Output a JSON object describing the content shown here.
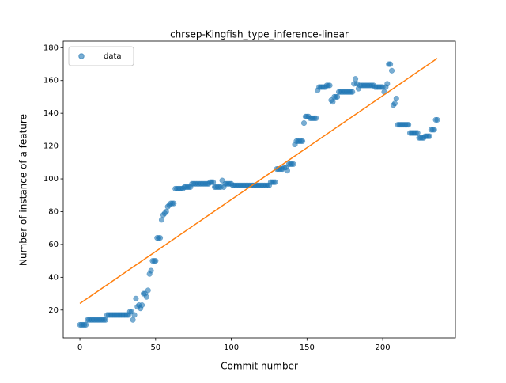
{
  "chart_data": {
    "type": "scatter",
    "title": "chrsep-Kingfish_type_inference-linear",
    "xlabel": "Commit number",
    "ylabel": "Number of instance of a feature",
    "xlim": [
      -11,
      248
    ],
    "ylim": [
      3,
      184
    ],
    "xticks": [
      0,
      50,
      100,
      150,
      200
    ],
    "yticks": [
      20,
      40,
      60,
      80,
      100,
      120,
      140,
      160,
      180
    ],
    "legend": "upper left",
    "series": [
      {
        "name": "data",
        "color": "#1f77b4",
        "x": [
          0,
          1,
          2,
          3,
          4,
          5,
          6,
          7,
          8,
          9,
          10,
          11,
          12,
          13,
          14,
          15,
          16,
          17,
          18,
          19,
          20,
          21,
          22,
          23,
          24,
          25,
          26,
          27,
          28,
          29,
          30,
          31,
          32,
          33,
          34,
          35,
          36,
          37,
          38,
          39,
          40,
          41,
          42,
          43,
          44,
          45,
          46,
          47,
          48,
          49,
          50,
          51,
          52,
          53,
          54,
          55,
          56,
          57,
          58,
          59,
          60,
          61,
          62,
          63,
          64,
          65,
          66,
          67,
          68,
          69,
          70,
          71,
          72,
          73,
          74,
          75,
          76,
          77,
          78,
          79,
          80,
          81,
          82,
          83,
          84,
          85,
          86,
          87,
          88,
          89,
          90,
          91,
          92,
          93,
          94,
          95,
          96,
          97,
          98,
          99,
          100,
          101,
          102,
          103,
          104,
          105,
          106,
          107,
          108,
          109,
          110,
          111,
          112,
          113,
          114,
          115,
          116,
          117,
          118,
          119,
          120,
          121,
          122,
          123,
          124,
          125,
          126,
          127,
          128,
          129,
          130,
          131,
          132,
          133,
          134,
          135,
          136,
          137,
          138,
          139,
          140,
          141,
          142,
          143,
          144,
          145,
          146,
          147,
          148,
          149,
          150,
          151,
          152,
          153,
          154,
          155,
          156,
          157,
          158,
          159,
          160,
          161,
          162,
          163,
          164,
          165,
          166,
          167,
          168,
          169,
          170,
          171,
          172,
          173,
          174,
          175,
          176,
          177,
          178,
          179,
          180,
          181,
          182,
          183,
          184,
          185,
          186,
          187,
          188,
          189,
          190,
          191,
          192,
          193,
          194,
          195,
          196,
          197,
          198,
          199,
          200,
          201,
          202,
          203,
          204,
          205,
          206,
          207,
          208,
          209,
          210,
          211,
          212,
          213,
          214,
          215,
          216,
          217,
          218,
          219,
          220,
          221,
          222,
          223,
          224,
          225,
          226,
          227,
          228,
          229,
          230,
          231,
          232,
          233,
          234,
          235,
          236
        ],
        "values": [
          11,
          11,
          11,
          11,
          11,
          14,
          14,
          14,
          14,
          14,
          14,
          14,
          14,
          14,
          14,
          14,
          14,
          14,
          17,
          17,
          17,
          17,
          17,
          17,
          17,
          17,
          17,
          17,
          17,
          17,
          17,
          17,
          17,
          19,
          19,
          14,
          17,
          27,
          22,
          23,
          21,
          23,
          30,
          30,
          28,
          32,
          42,
          44,
          50,
          50,
          50,
          64,
          64,
          64,
          75,
          78,
          79,
          80,
          83,
          84,
          85,
          85,
          85,
          94,
          94,
          94,
          94,
          94,
          94,
          95,
          95,
          95,
          95,
          95,
          97,
          97,
          97,
          97,
          97,
          97,
          97,
          97,
          97,
          97,
          97,
          97,
          98,
          98,
          98,
          95,
          95,
          95,
          95,
          95,
          99,
          95,
          97,
          97,
          97,
          97,
          97,
          96,
          96,
          96,
          96,
          96,
          96,
          96,
          96,
          96,
          96,
          96,
          96,
          96,
          96,
          96,
          96,
          96,
          96,
          96,
          96,
          96,
          96,
          96,
          96,
          96,
          98,
          98,
          98,
          98,
          106,
          106,
          106,
          106,
          106,
          107,
          107,
          105,
          109,
          109,
          109,
          109,
          121,
          123,
          123,
          123,
          123,
          123,
          134,
          138,
          138,
          138,
          137,
          137,
          137,
          137,
          137,
          154,
          156,
          156,
          156,
          156,
          156,
          157,
          157,
          157,
          148,
          147,
          150,
          150,
          150,
          153,
          153,
          153,
          153,
          153,
          153,
          153,
          153,
          153,
          153,
          158,
          161,
          158,
          155,
          157,
          157,
          157,
          157,
          157,
          157,
          157,
          157,
          157,
          157,
          156,
          156,
          156,
          156,
          156,
          156,
          153,
          156,
          158,
          170,
          170,
          166,
          145,
          146,
          149,
          133,
          133,
          133,
          133,
          133,
          133,
          133,
          133,
          128,
          128,
          128,
          128,
          128,
          128,
          125,
          125,
          125,
          125,
          126,
          126,
          126,
          126,
          130,
          130,
          130,
          136,
          136
        ]
      }
    ],
    "fit_line": {
      "color": "#ff7f0e",
      "x": [
        0,
        236
      ],
      "values": [
        24,
        173.5
      ]
    }
  }
}
